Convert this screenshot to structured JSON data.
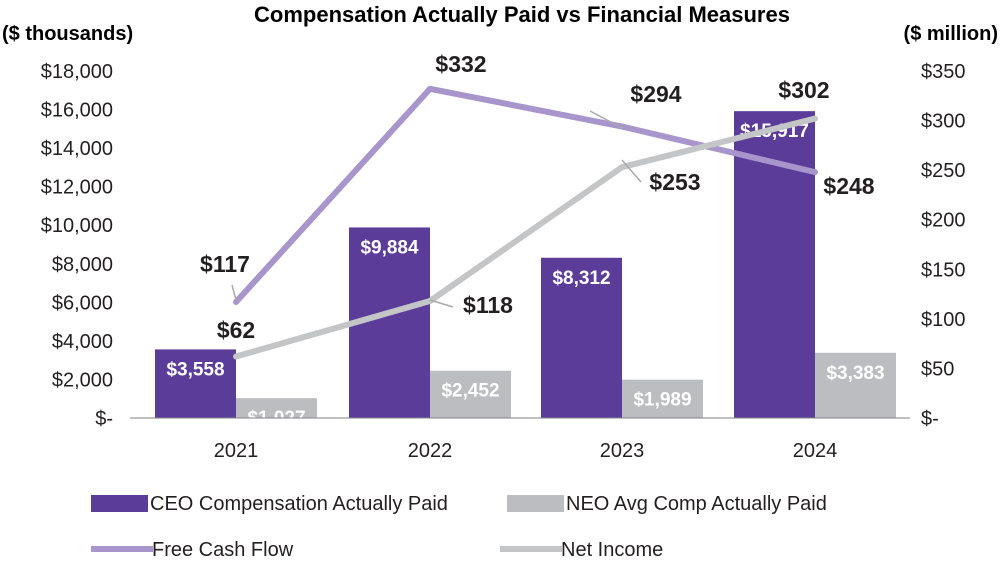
{
  "chart_data": {
    "type": "bar",
    "title": "Compensation Actually Paid vs Financial Measures",
    "ylabel_left": "($ thousands)",
    "ylabel_right": "($ million)",
    "categories": [
      "2021",
      "2022",
      "2023",
      "2024"
    ],
    "ylim_left": [
      0,
      18000
    ],
    "ylim_right": [
      0,
      350
    ],
    "left_ticks": [
      "$-",
      "$2,000",
      "$4,000",
      "$6,000",
      "$8,000",
      "$10,000",
      "$12,000",
      "$14,000",
      "$16,000",
      "$18,000"
    ],
    "left_tick_values": [
      0,
      2000,
      4000,
      6000,
      8000,
      10000,
      12000,
      14000,
      16000,
      18000
    ],
    "right_ticks": [
      "$-",
      "$50",
      "$100",
      "$150",
      "$200",
      "$250",
      "$300",
      "$350"
    ],
    "right_tick_values": [
      0,
      50,
      100,
      150,
      200,
      250,
      300,
      350
    ],
    "bar_series": [
      {
        "name": "CEO Compensation Actually Paid",
        "color": "#5b3d99",
        "values": [
          3558,
          9884,
          8312,
          15917
        ],
        "labels": [
          "$3,558",
          "$9,884",
          "$8,312",
          "$15,917"
        ]
      },
      {
        "name": "NEO Avg Comp Actually Paid",
        "color": "#bcbdc0",
        "values": [
          1027,
          2452,
          1989,
          3383
        ],
        "labels": [
          "$1,027",
          "$2,452",
          "$1,989",
          "$3,383"
        ]
      }
    ],
    "line_series": [
      {
        "name": "Free Cash Flow",
        "color": "#a895cc",
        "axis": "right",
        "values": [
          117,
          332,
          294,
          248
        ],
        "labels": [
          "$117",
          "$332",
          "$294",
          "$248"
        ]
      },
      {
        "name": "Net Income",
        "color": "#c4c5c7",
        "axis": "right",
        "values": [
          62,
          118,
          253,
          302
        ],
        "labels": [
          "$62",
          "$118",
          "$253",
          "$302"
        ]
      }
    ],
    "legend": [
      "CEO Compensation Actually Paid",
      "NEO Avg Comp Actually Paid",
      "Free Cash Flow",
      "Net Income"
    ],
    "legend_position": "bottom"
  }
}
